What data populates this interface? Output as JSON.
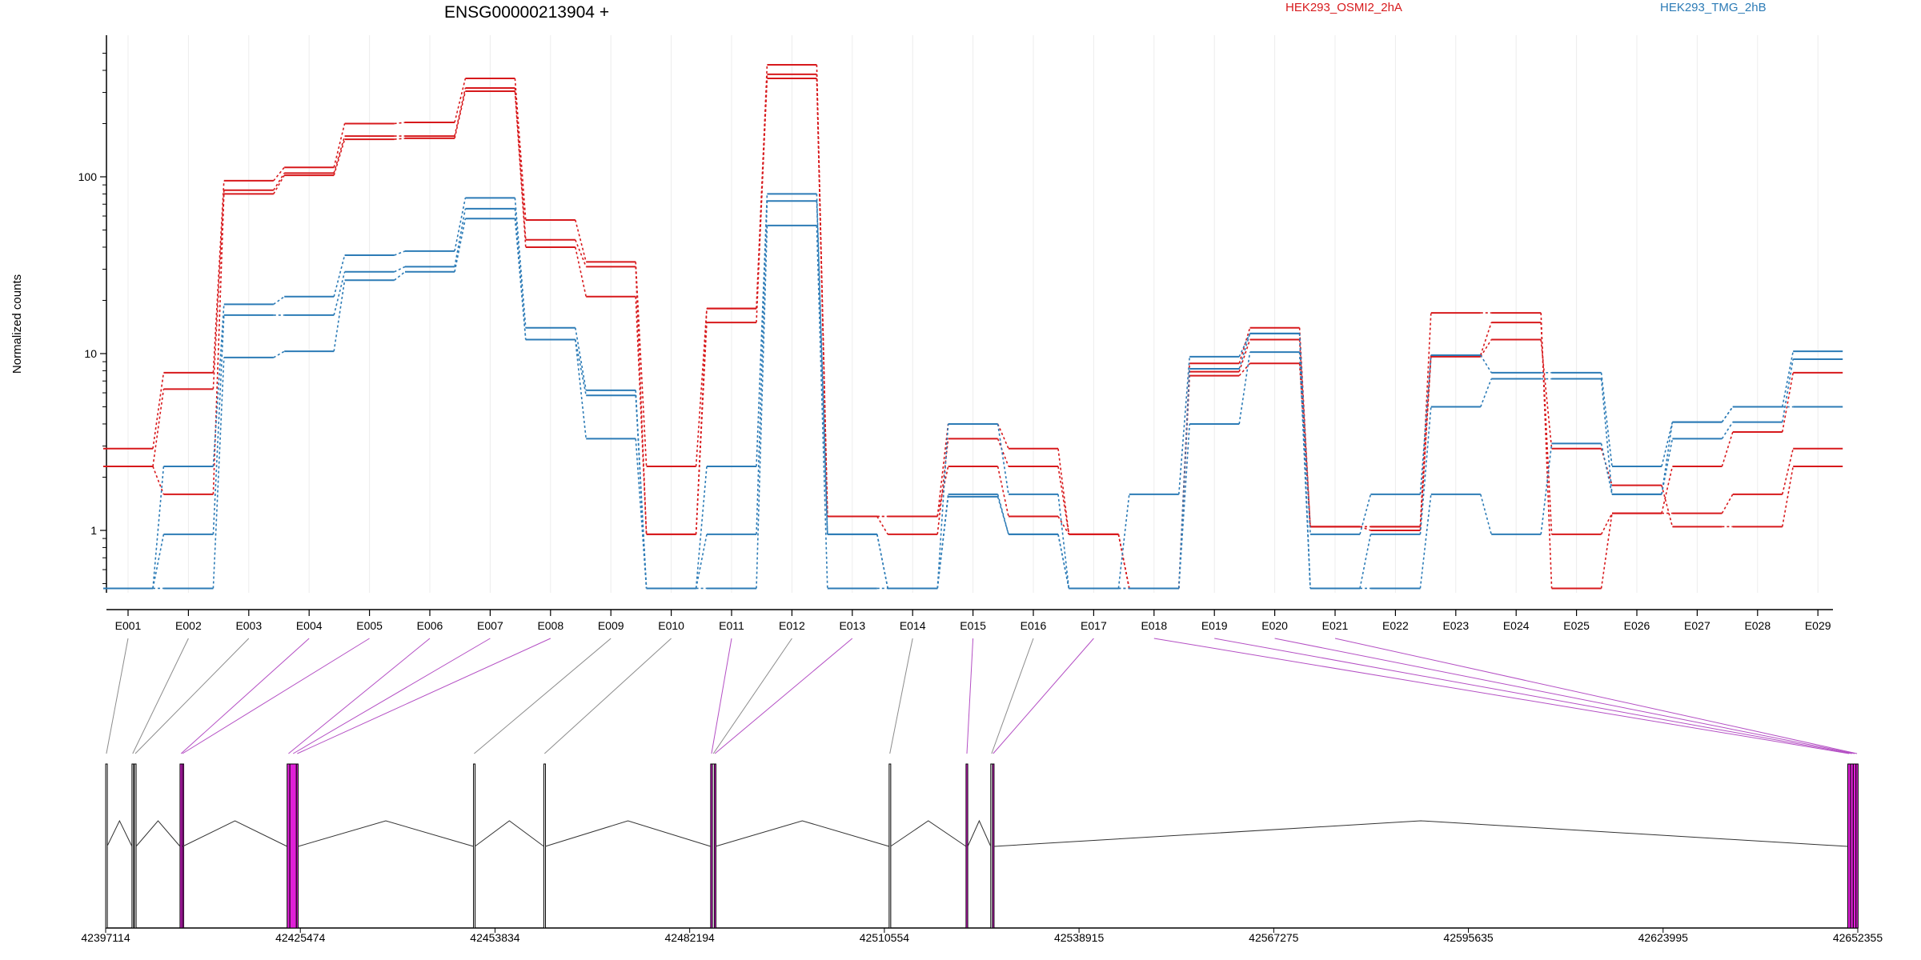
{
  "chart_data": {
    "type": "line",
    "title": "ENSG00000213904 +",
    "ylabel": "Normalized counts",
    "y_scale": "log",
    "ylim": [
      0.45,
      500
    ],
    "y_ticks": [
      {
        "value": 1,
        "label": "1"
      },
      {
        "value": 10,
        "label": "10"
      },
      {
        "value": 100,
        "label": "100"
      }
    ],
    "categories": [
      "E001",
      "E002",
      "E003",
      "E004",
      "E005",
      "E006",
      "E007",
      "E008",
      "E009",
      "E010",
      "E011",
      "E012",
      "E013",
      "E014",
      "E015",
      "E016",
      "E017",
      "E018",
      "E019",
      "E020",
      "E021",
      "E022",
      "E023",
      "E024",
      "E025",
      "E026",
      "E027",
      "E028",
      "E029"
    ],
    "legend": [
      {
        "label": "HEK293_OSMI2_2hA",
        "color": "#d7191c",
        "position": "top-center"
      },
      {
        "label": "HEK293_TMG_2hB",
        "color": "#2c7bb6",
        "position": "top-right"
      }
    ],
    "series": [
      {
        "group": "HEK293_OSMI2_2hA",
        "color": "#d7191c",
        "values": [
          2.9,
          7.8,
          95,
          113,
          200,
          203,
          360,
          57,
          33,
          2.3,
          18,
          430,
          1.2,
          1.2,
          4.0,
          2.9,
          0.95,
          0.47,
          8.8,
          14,
          1.05,
          1.05,
          17,
          17,
          0.47,
          1.25,
          1.25,
          1.6,
          2.9
        ]
      },
      {
        "group": "HEK293_OSMI2_2hA",
        "color": "#d7191c",
        "values": [
          2.3,
          6.3,
          84,
          105,
          170,
          170,
          318,
          44,
          31,
          0.95,
          15,
          380,
          1.2,
          0.95,
          3.3,
          2.3,
          0.95,
          0.47,
          7.9,
          12,
          1.05,
          1.0,
          9.8,
          15,
          0.95,
          1.25,
          2.3,
          3.6,
          7.8
        ]
      },
      {
        "group": "HEK293_OSMI2_2hA",
        "color": "#d7191c",
        "values": [
          2.3,
          1.6,
          80,
          102,
          163,
          165,
          305,
          40,
          21,
          0.95,
          18,
          360,
          1.2,
          1.2,
          2.3,
          1.2,
          0.95,
          0.47,
          7.5,
          8.8,
          1.05,
          1.05,
          9.6,
          12,
          2.9,
          1.8,
          1.05,
          1.05,
          2.3
        ]
      },
      {
        "group": "HEK293_TMG_2hB",
        "color": "#2c7bb6",
        "values": [
          0.47,
          2.3,
          19,
          21,
          36,
          38,
          76,
          14,
          6.2,
          0.47,
          2.3,
          80,
          0.95,
          0.47,
          4.0,
          1.6,
          0.47,
          1.6,
          9.6,
          13,
          0.95,
          1.6,
          9.8,
          7.8,
          7.8,
          2.3,
          4.1,
          5.0,
          10.3
        ]
      },
      {
        "group": "HEK293_TMG_2hB",
        "color": "#2c7bb6",
        "values": [
          0.47,
          0.95,
          16.5,
          16.5,
          29,
          31,
          66,
          12,
          5.8,
          0.47,
          0.95,
          73,
          0.95,
          0.47,
          1.6,
          0.95,
          0.47,
          0.47,
          8.2,
          13,
          0.47,
          0.95,
          5.0,
          7.2,
          7.2,
          1.6,
          3.3,
          4.1,
          9.3
        ]
      },
      {
        "group": "HEK293_TMG_2hB",
        "color": "#2c7bb6",
        "values": [
          0.47,
          0.47,
          9.5,
          10.3,
          26,
          29,
          58,
          12,
          3.3,
          0.47,
          0.47,
          53,
          0.47,
          0.47,
          1.55,
          0.95,
          0.47,
          0.47,
          4.0,
          10.2,
          0.47,
          0.47,
          1.6,
          0.95,
          3.1,
          1.6,
          4.1,
          5.0,
          5.0
        ]
      }
    ],
    "gene_model": {
      "coordinates": [
        "42397114",
        "42425474",
        "42453834",
        "42482194",
        "42510554",
        "42538915",
        "42567275",
        "42595635",
        "42623995",
        "42652355"
      ],
      "coord_range": [
        42397114,
        42652355
      ],
      "exons": [
        {
          "id": "E001",
          "start": 42397120,
          "end": 42397320,
          "tested": false
        },
        {
          "id": "E002",
          "start": 42400950,
          "end": 42401150,
          "tested": false
        },
        {
          "id": "E003",
          "start": 42401300,
          "end": 42401550,
          "tested": false
        },
        {
          "id": "E004",
          "start": 42407950,
          "end": 42408250,
          "tested": true
        },
        {
          "id": "E005",
          "start": 42408250,
          "end": 42408350,
          "tested": true
        },
        {
          "id": "E006",
          "start": 42423550,
          "end": 42423950,
          "tested": true
        },
        {
          "id": "E007",
          "start": 42423950,
          "end": 42424900,
          "tested": true
        },
        {
          "id": "E008",
          "start": 42424900,
          "end": 42425150,
          "tested": true
        },
        {
          "id": "E009",
          "start": 42450700,
          "end": 42450900,
          "tested": false
        },
        {
          "id": "E010",
          "start": 42460950,
          "end": 42461150,
          "tested": false
        },
        {
          "id": "E011",
          "start": 42485250,
          "end": 42485500,
          "tested": true
        },
        {
          "id": "E012",
          "start": 42485500,
          "end": 42485780,
          "tested": false
        },
        {
          "id": "E013",
          "start": 42485780,
          "end": 42485950,
          "tested": true
        },
        {
          "id": "E014",
          "start": 42511250,
          "end": 42511450,
          "tested": false
        },
        {
          "id": "E015",
          "start": 42522450,
          "end": 42522700,
          "tested": true
        },
        {
          "id": "E016",
          "start": 42526050,
          "end": 42526300,
          "tested": false
        },
        {
          "id": "E017",
          "start": 42526300,
          "end": 42526500,
          "tested": true
        },
        {
          "id": "E018",
          "start": 42650900,
          "end": 42651300,
          "tested": true
        },
        {
          "id": "E019",
          "start": 42651300,
          "end": 42651700,
          "tested": true
        },
        {
          "id": "E020",
          "start": 42651700,
          "end": 42652100,
          "tested": true
        },
        {
          "id": "E021",
          "start": 42652100,
          "end": 42652400,
          "tested": true
        }
      ]
    }
  }
}
